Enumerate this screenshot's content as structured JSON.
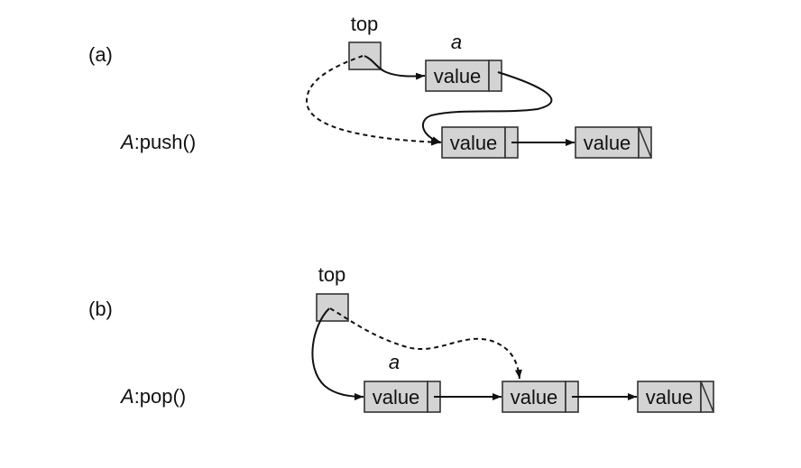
{
  "panels": [
    {
      "tag": "(a)",
      "operation_prefix": "A",
      "operation_suffix": ":push()",
      "top_label": "top",
      "node_a_label": "a"
    },
    {
      "tag": "(b)",
      "operation_prefix": "A",
      "operation_suffix": ":pop()",
      "top_label": "top",
      "node_a_label": "a"
    }
  ],
  "node_text": "value"
}
